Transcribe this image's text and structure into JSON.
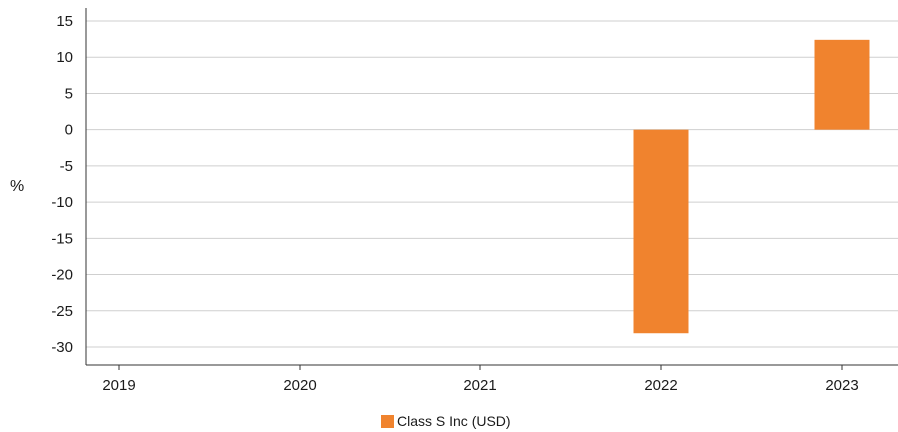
{
  "chart_data": {
    "type": "bar",
    "categories": [
      "2019",
      "2020",
      "2021",
      "2022",
      "2023"
    ],
    "series": [
      {
        "name": "Class S Inc (USD)",
        "values": [
          null,
          null,
          null,
          -28.1,
          12.4
        ],
        "color": "#F0832E"
      }
    ],
    "ylabel": "%",
    "xlabel": "",
    "ylim": [
      -30,
      15
    ],
    "yticks": [
      15,
      10,
      5,
      0,
      -5,
      -10,
      -15,
      -20,
      -25,
      -30
    ],
    "grid": true,
    "legend_position": "bottom-center"
  }
}
